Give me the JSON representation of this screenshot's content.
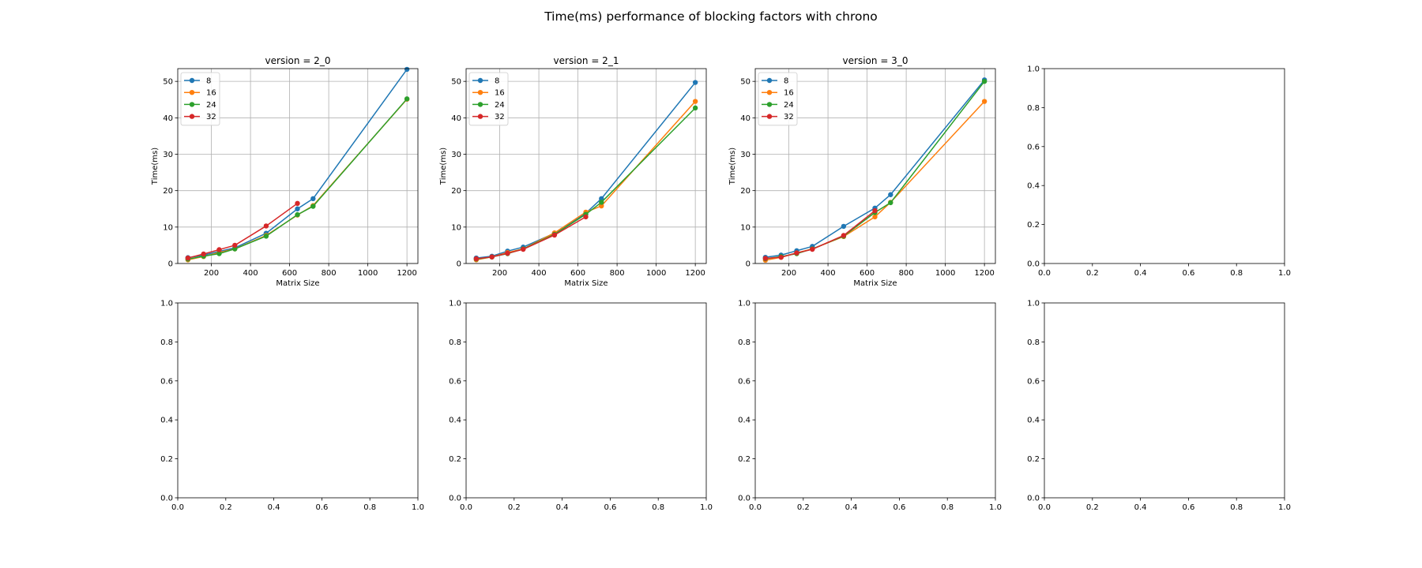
{
  "figure": {
    "suptitle": "Time(ms) performance of blocking factors with chrono"
  },
  "colors": {
    "8": "#1f77b4",
    "16": "#ff7f0e",
    "24": "#2ca02c",
    "32": "#d62728",
    "grid": "#b0b0b0",
    "axes": "#000000"
  },
  "chart_data": [
    {
      "type": "line",
      "title": "version = 2_0",
      "xlabel": "Matrix Size",
      "ylabel": "Time(ms)",
      "xlim": [
        28,
        1256
      ],
      "ylim": [
        0,
        53.5
      ],
      "xticks": [
        200,
        400,
        600,
        800,
        1000,
        1200
      ],
      "yticks": [
        0,
        10,
        20,
        30,
        40,
        50
      ],
      "grid": true,
      "legend": "upper-left",
      "series": [
        {
          "name": "8",
          "x": [
            80,
            160,
            240,
            320,
            480,
            640,
            720,
            1200
          ],
          "y": [
            1.6,
            2.3,
            3.3,
            4.3,
            8.3,
            15.0,
            17.8,
            53.3
          ]
        },
        {
          "name": "16",
          "x": [
            80,
            160,
            240,
            320,
            480,
            640,
            720,
            1200
          ],
          "y": [
            1.0,
            1.9,
            3.0,
            4.0,
            7.7,
            13.3,
            15.9,
            45.1
          ]
        },
        {
          "name": "24",
          "x": [
            80,
            160,
            240,
            320,
            480,
            640,
            720,
            1200
          ],
          "y": [
            1.2,
            2.0,
            2.7,
            4.0,
            7.5,
            13.4,
            15.7,
            45.2
          ]
        },
        {
          "name": "32",
          "x": [
            80,
            160,
            240,
            320,
            480,
            640
          ],
          "y": [
            1.5,
            2.6,
            3.8,
            5.0,
            10.3,
            16.5
          ]
        }
      ]
    },
    {
      "type": "line",
      "title": "version = 2_1",
      "xlabel": "Matrix Size",
      "ylabel": "Time(ms)",
      "xlim": [
        28,
        1256
      ],
      "ylim": [
        0,
        53.5
      ],
      "xticks": [
        200,
        400,
        600,
        800,
        1000,
        1200
      ],
      "yticks": [
        0,
        10,
        20,
        30,
        40,
        50
      ],
      "grid": true,
      "legend": "upper-left",
      "series": [
        {
          "name": "8",
          "x": [
            80,
            160,
            240,
            320,
            480,
            640,
            720,
            1200
          ],
          "y": [
            1.5,
            2.0,
            3.4,
            4.5,
            8.3,
            13.8,
            17.8,
            49.7
          ]
        },
        {
          "name": "16",
          "x": [
            80,
            160,
            240,
            320,
            480,
            640,
            720,
            1200
          ],
          "y": [
            1.0,
            1.8,
            3.0,
            4.0,
            8.4,
            14.1,
            15.8,
            44.5
          ]
        },
        {
          "name": "24",
          "x": [
            80,
            160,
            240,
            320,
            480,
            640,
            720,
            1200
          ],
          "y": [
            1.2,
            1.8,
            2.7,
            4.0,
            8.0,
            13.5,
            16.8,
            42.7
          ]
        },
        {
          "name": "32",
          "x": [
            80,
            160,
            240,
            320,
            480,
            640
          ],
          "y": [
            1.3,
            1.8,
            2.8,
            3.9,
            7.8,
            12.8
          ]
        }
      ]
    },
    {
      "type": "line",
      "title": "version = 3_0",
      "xlabel": "Matrix Size",
      "ylabel": "Time(ms)",
      "xlim": [
        28,
        1256
      ],
      "ylim": [
        0,
        53.5
      ],
      "xticks": [
        200,
        400,
        600,
        800,
        1000,
        1200
      ],
      "yticks": [
        0,
        10,
        20,
        30,
        40,
        50
      ],
      "grid": true,
      "legend": "upper-left",
      "series": [
        {
          "name": "8",
          "x": [
            80,
            160,
            240,
            320,
            480,
            640,
            720,
            1200
          ],
          "y": [
            1.7,
            2.3,
            3.5,
            4.7,
            10.2,
            15.2,
            18.9,
            50.4
          ]
        },
        {
          "name": "16",
          "x": [
            80,
            160,
            240,
            320,
            480,
            640,
            720,
            1200
          ],
          "y": [
            0.9,
            1.7,
            2.9,
            4.0,
            7.4,
            12.8,
            16.8,
            44.5
          ]
        },
        {
          "name": "24",
          "x": [
            80,
            160,
            240,
            320,
            480,
            640,
            720,
            1200
          ],
          "y": [
            1.3,
            1.9,
            2.7,
            4.0,
            7.5,
            14.0,
            16.7,
            50.0
          ]
        },
        {
          "name": "32",
          "x": [
            80,
            160,
            240,
            320,
            480,
            640
          ],
          "y": [
            1.4,
            1.7,
            2.9,
            3.9,
            7.7,
            14.5
          ]
        }
      ]
    },
    {
      "type": "line",
      "title": "",
      "xlabel": "",
      "ylabel": "",
      "xlim": [
        0,
        1
      ],
      "ylim": [
        0,
        1
      ],
      "xticks": [
        0.0,
        0.2,
        0.4,
        0.6,
        0.8,
        1.0
      ],
      "yticks": [
        0.0,
        0.2,
        0.4,
        0.6,
        0.8,
        1.0
      ],
      "grid": false,
      "series": []
    },
    {
      "type": "line",
      "title": "",
      "xlabel": "",
      "ylabel": "",
      "xlim": [
        0,
        1
      ],
      "ylim": [
        0,
        1
      ],
      "xticks": [
        0.0,
        0.2,
        0.4,
        0.6,
        0.8,
        1.0
      ],
      "yticks": [
        0.0,
        0.2,
        0.4,
        0.6,
        0.8,
        1.0
      ],
      "grid": false,
      "series": []
    },
    {
      "type": "line",
      "title": "",
      "xlabel": "",
      "ylabel": "",
      "xlim": [
        0,
        1
      ],
      "ylim": [
        0,
        1
      ],
      "xticks": [
        0.0,
        0.2,
        0.4,
        0.6,
        0.8,
        1.0
      ],
      "yticks": [
        0.0,
        0.2,
        0.4,
        0.6,
        0.8,
        1.0
      ],
      "grid": false,
      "series": []
    },
    {
      "type": "line",
      "title": "",
      "xlabel": "",
      "ylabel": "",
      "xlim": [
        0,
        1
      ],
      "ylim": [
        0,
        1
      ],
      "xticks": [
        0.0,
        0.2,
        0.4,
        0.6,
        0.8,
        1.0
      ],
      "yticks": [
        0.0,
        0.2,
        0.4,
        0.6,
        0.8,
        1.0
      ],
      "grid": false,
      "series": []
    },
    {
      "type": "line",
      "title": "",
      "xlabel": "",
      "ylabel": "",
      "xlim": [
        0,
        1
      ],
      "ylim": [
        0,
        1
      ],
      "xticks": [
        0.0,
        0.2,
        0.4,
        0.6,
        0.8,
        1.0
      ],
      "yticks": [
        0.0,
        0.2,
        0.4,
        0.6,
        0.8,
        1.0
      ],
      "grid": false,
      "series": []
    }
  ]
}
